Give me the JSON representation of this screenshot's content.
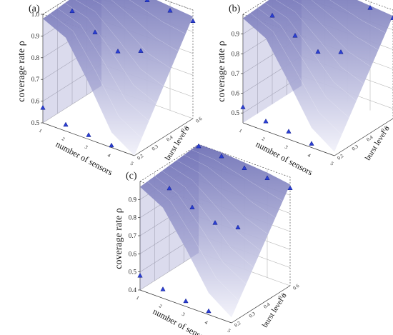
{
  "colors": {
    "surface_top": "#6f71b6",
    "surface_bottom": "#f2f2fa",
    "marker": "#2b3fd2",
    "marker_edge": "#0e1a8a",
    "axis": "#333333",
    "grid": "#b8b8b8"
  },
  "chart_data": [
    {
      "type": "surface3d",
      "panel_label": "(a)",
      "zlabel": "coverage rate ρ",
      "xlabel": "number of sensors",
      "ylabel": "burst level σ",
      "z_ticks": [
        "0.5",
        "0.6",
        "0.7",
        "0.8",
        "0.9",
        "1.0"
      ],
      "x_ticks": [
        "1",
        "2",
        "3",
        "4",
        "5"
      ],
      "y_ticks": [
        "0.2",
        "0.3",
        "0.4",
        "0.5",
        "0.6"
      ],
      "zlim": [
        0.5,
        1.0
      ],
      "x_range": [
        1,
        5
      ],
      "y_range": [
        0.2,
        0.6
      ],
      "surface_front_edge": [
        0.98,
        0.93,
        0.76,
        0.57,
        0.5
      ],
      "surface_back_edge": [
        1.0,
        1.0,
        0.99,
        0.98,
        0.97
      ],
      "points": [
        {
          "x": 1,
          "y": 0.2,
          "z": 0.57
        },
        {
          "x": 2,
          "y": 0.2,
          "z": 0.53
        },
        {
          "x": 3,
          "y": 0.2,
          "z": 0.52
        },
        {
          "x": 4,
          "y": 0.2,
          "z": 0.51
        },
        {
          "x": 1,
          "y": 0.4,
          "z": 0.93
        },
        {
          "x": 2,
          "y": 0.4,
          "z": 0.87
        },
        {
          "x": 3,
          "y": 0.4,
          "z": 0.82
        },
        {
          "x": 4,
          "y": 0.4,
          "z": 0.86
        },
        {
          "x": 1,
          "y": 0.6,
          "z": 1.0
        },
        {
          "x": 2,
          "y": 0.6,
          "z": 0.99
        },
        {
          "x": 3,
          "y": 0.6,
          "z": 0.97
        },
        {
          "x": 4,
          "y": 0.6,
          "z": 0.96
        },
        {
          "x": 5,
          "y": 0.6,
          "z": 0.95
        }
      ]
    },
    {
      "type": "surface3d",
      "panel_label": "(b)",
      "zlabel": "coverage rate ρ",
      "xlabel": "number of sensors",
      "ylabel": "burst level σ",
      "z_ticks": [
        "0.5",
        "0.6",
        "0.7",
        "0.8",
        "0.9"
      ],
      "x_ticks": [
        "1",
        "2",
        "3",
        "4",
        "5"
      ],
      "y_ticks": [
        "0.2",
        "0.3",
        "0.4",
        "0.5",
        "0.6"
      ],
      "zlim": [
        0.45,
        1.0
      ],
      "x_range": [
        1,
        5
      ],
      "y_range": [
        0.2,
        0.6
      ],
      "surface_front_edge": [
        0.98,
        0.92,
        0.74,
        0.55,
        0.47
      ],
      "surface_back_edge": [
        1.0,
        1.0,
        0.99,
        0.98,
        0.97
      ],
      "points": [
        {
          "x": 1,
          "y": 0.2,
          "z": 0.53
        },
        {
          "x": 2,
          "y": 0.2,
          "z": 0.5
        },
        {
          "x": 3,
          "y": 0.2,
          "z": 0.49
        },
        {
          "x": 4,
          "y": 0.2,
          "z": 0.47
        },
        {
          "x": 1,
          "y": 0.4,
          "z": 0.9
        },
        {
          "x": 2,
          "y": 0.4,
          "z": 0.84
        },
        {
          "x": 3,
          "y": 0.4,
          "z": 0.8
        },
        {
          "x": 4,
          "y": 0.4,
          "z": 0.84
        },
        {
          "x": 1,
          "y": 0.6,
          "z": 1.0
        },
        {
          "x": 2,
          "y": 0.6,
          "z": 0.99
        },
        {
          "x": 3,
          "y": 0.6,
          "z": 0.98
        },
        {
          "x": 4,
          "y": 0.6,
          "z": 0.97
        },
        {
          "x": 5,
          "y": 0.6,
          "z": 0.96
        }
      ]
    },
    {
      "type": "surface3d",
      "panel_label": "(c)",
      "zlabel": "coverage rate ρ",
      "xlabel": "number of sensors",
      "ylabel": "burst level σ",
      "z_ticks": [
        "0.4",
        "0.5",
        "0.6",
        "0.7",
        "0.8",
        "0.9"
      ],
      "x_ticks": [
        "1",
        "2",
        "3",
        "4",
        "5"
      ],
      "y_ticks": [
        "0.2",
        "0.3",
        "0.4",
        "0.5",
        "0.6"
      ],
      "zlim": [
        0.4,
        1.0
      ],
      "x_range": [
        1,
        5
      ],
      "y_range": [
        0.2,
        0.6
      ],
      "surface_front_edge": [
        0.97,
        0.9,
        0.72,
        0.52,
        0.43
      ],
      "surface_back_edge": [
        1.0,
        1.0,
        0.99,
        0.98,
        0.96
      ],
      "points": [
        {
          "x": 1,
          "y": 0.2,
          "z": 0.48
        },
        {
          "x": 2,
          "y": 0.2,
          "z": 0.45
        },
        {
          "x": 3,
          "y": 0.2,
          "z": 0.43
        },
        {
          "x": 4,
          "y": 0.2,
          "z": 0.42
        },
        {
          "x": 1,
          "y": 0.4,
          "z": 0.86
        },
        {
          "x": 2,
          "y": 0.4,
          "z": 0.8
        },
        {
          "x": 3,
          "y": 0.4,
          "z": 0.76
        },
        {
          "x": 4,
          "y": 0.4,
          "z": 0.78
        },
        {
          "x": 1,
          "y": 0.6,
          "z": 0.99
        },
        {
          "x": 2,
          "y": 0.6,
          "z": 0.98
        },
        {
          "x": 3,
          "y": 0.6,
          "z": 0.96
        },
        {
          "x": 4,
          "y": 0.6,
          "z": 0.95
        },
        {
          "x": 5,
          "y": 0.6,
          "z": 0.94
        }
      ]
    }
  ]
}
